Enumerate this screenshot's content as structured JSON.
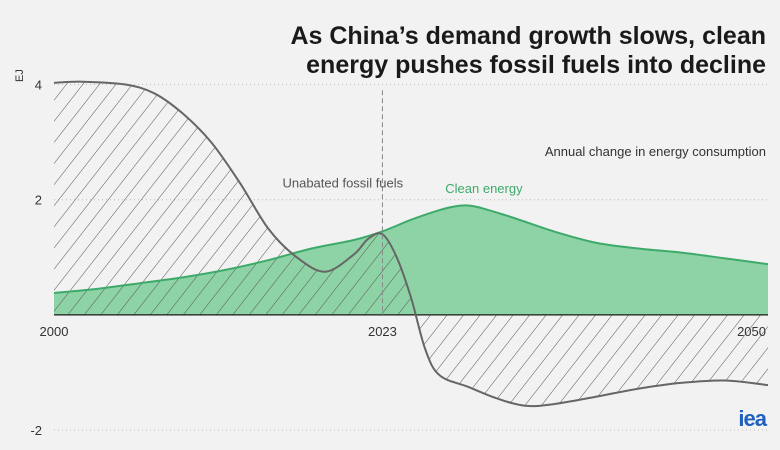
{
  "title": "As China’s demand growth slows, clean energy pushes fossil fuels into decline",
  "subtitle": "Annual change in energy consumption",
  "logo_text": "iea",
  "colors": {
    "clean": "#8ed3a6",
    "clean_line": "#3daa6a",
    "fossil_line": "#666666",
    "grid": "#b9b9b9",
    "background": "#f2f2f2"
  },
  "chart_data": {
    "type": "area",
    "ylabel": "EJ",
    "ylim": [
      -2,
      4.6
    ],
    "xlim": [
      2000,
      2050
    ],
    "y_ticks": [
      4,
      2,
      0,
      -2
    ],
    "y_tick_labels": [
      "4",
      "2",
      "",
      "-2"
    ],
    "x_tick_labels": [
      {
        "x": 2000,
        "label": "2000"
      },
      {
        "x": 2023,
        "label": "2023"
      },
      {
        "x": 2050,
        "label": "2050"
      }
    ],
    "marker_year": 2023,
    "grid": "dotted horizontal",
    "series": [
      {
        "name": "Unabated fossil fuels",
        "style": "hatched",
        "x": [
          2000,
          2002,
          2005,
          2007,
          2009,
          2011,
          2013,
          2015,
          2017,
          2019,
          2021,
          2022,
          2023,
          2024,
          2025,
          2026,
          2027,
          2029,
          2031,
          2033,
          2035,
          2038,
          2041,
          2044,
          2047,
          2050
        ],
        "y": [
          4.03,
          4.05,
          4.0,
          3.85,
          3.5,
          3.0,
          2.3,
          1.5,
          1.0,
          0.75,
          1.05,
          1.32,
          1.4,
          1.0,
          0.3,
          -0.6,
          -1.05,
          -1.25,
          -1.45,
          -1.58,
          -1.55,
          -1.42,
          -1.28,
          -1.18,
          -1.14,
          -1.22
        ]
      },
      {
        "name": "Clean energy",
        "style": "filled",
        "x": [
          2000,
          2003,
          2006,
          2009,
          2012,
          2015,
          2018,
          2021,
          2023,
          2025,
          2027,
          2028,
          2029,
          2030,
          2032,
          2035,
          2038,
          2041,
          2044,
          2047,
          2050
        ],
        "y": [
          0.38,
          0.45,
          0.55,
          0.65,
          0.78,
          0.95,
          1.15,
          1.3,
          1.45,
          1.65,
          1.82,
          1.88,
          1.9,
          1.85,
          1.7,
          1.45,
          1.25,
          1.15,
          1.08,
          0.98,
          0.88
        ]
      }
    ],
    "annotations": [
      {
        "text": "Unabated fossil fuels",
        "x": 2016,
        "y": 2.3,
        "series": "Unabated fossil fuels"
      },
      {
        "text": "Clean energy",
        "x": 2027.4,
        "y": 2.2,
        "series": "Clean energy"
      }
    ]
  }
}
